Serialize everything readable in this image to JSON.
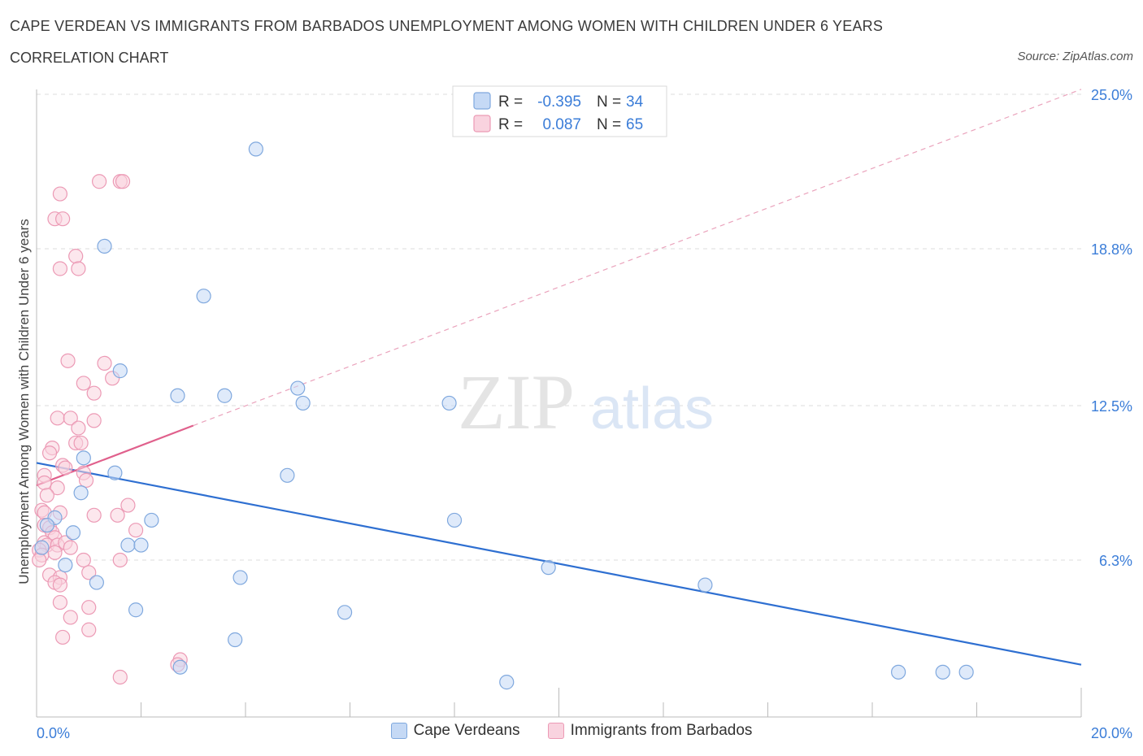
{
  "header": {
    "title": "CAPE VERDEAN VS IMMIGRANTS FROM BARBADOS UNEMPLOYMENT AMONG WOMEN WITH CHILDREN UNDER 6 YEARS",
    "subtitle": "CORRELATION CHART",
    "source": "Source: ZipAtlas.com"
  },
  "watermark": {
    "zip": "ZIP",
    "atlas": "atlas"
  },
  "legend_box": {
    "rows": [
      {
        "r_label": "R =",
        "r_value": "-0.395",
        "n_label": "N =",
        "n_value": "34"
      },
      {
        "r_label": "R =",
        "r_value": "0.087",
        "n_label": "N =",
        "n_value": "65"
      }
    ]
  },
  "chart_data": {
    "type": "scatter",
    "title": "CAPE VERDEAN VS IMMIGRANTS FROM BARBADOS UNEMPLOYMENT AMONG WOMEN WITH CHILDREN UNDER 6 YEARS",
    "xlabel": "",
    "ylabel": "Unemployment Among Women with Children Under 6 years",
    "xlim": [
      0,
      20
    ],
    "ylim": [
      0,
      25
    ],
    "x_tick_labels": [
      {
        "value": 0,
        "label": "0.0%"
      },
      {
        "value": 20,
        "label": "20.0%"
      }
    ],
    "y_tick_labels": [
      {
        "value": 6.3,
        "label": "6.3%"
      },
      {
        "value": 12.5,
        "label": "12.5%"
      },
      {
        "value": 18.8,
        "label": "18.8%"
      },
      {
        "value": 25.0,
        "label": "25.0%"
      }
    ],
    "legend_position": "bottom-center",
    "colors": {
      "blue_stroke": "#7fa8de",
      "blue_fill": "#c5d9f5",
      "blue_line": "#2e6fd1",
      "pink_stroke": "#ec9ab5",
      "pink_fill": "#f9d3df",
      "pink_line": "#e0608c",
      "value_text": "#3b7dd8"
    },
    "series": [
      {
        "name": "Cape Verdeans",
        "color": "#7fa8de",
        "trend": {
          "x": [
            0,
            20
          ],
          "y": [
            10.2,
            2.1
          ],
          "style": "solid"
        },
        "points": [
          [
            4.2,
            22.8
          ],
          [
            1.3,
            18.9
          ],
          [
            3.2,
            16.9
          ],
          [
            1.6,
            13.9
          ],
          [
            5.0,
            13.2
          ],
          [
            2.7,
            12.9
          ],
          [
            3.6,
            12.9
          ],
          [
            5.1,
            12.6
          ],
          [
            7.9,
            12.6
          ],
          [
            0.9,
            10.4
          ],
          [
            1.5,
            9.8
          ],
          [
            4.8,
            9.7
          ],
          [
            0.85,
            9.0
          ],
          [
            0.35,
            8.0
          ],
          [
            2.2,
            7.9
          ],
          [
            8.0,
            7.9
          ],
          [
            0.7,
            7.4
          ],
          [
            1.75,
            6.9
          ],
          [
            2.0,
            6.9
          ],
          [
            0.55,
            6.1
          ],
          [
            9.8,
            6.0
          ],
          [
            3.9,
            5.6
          ],
          [
            1.15,
            5.4
          ],
          [
            12.8,
            5.3
          ],
          [
            1.9,
            4.3
          ],
          [
            5.9,
            4.2
          ],
          [
            3.8,
            3.1
          ],
          [
            2.75,
            2.0
          ],
          [
            16.5,
            1.8
          ],
          [
            17.35,
            1.8
          ],
          [
            17.8,
            1.8
          ],
          [
            9.0,
            1.4
          ],
          [
            0.2,
            7.7
          ],
          [
            0.1,
            6.8
          ]
        ]
      },
      {
        "name": "Immigrants from Barbados",
        "color": "#ec9ab5",
        "trend": {
          "x": [
            0,
            3.0
          ],
          "y": [
            9.3,
            11.7
          ],
          "style": "solid"
        },
        "trend_ext": {
          "x": [
            3.0,
            20
          ],
          "y": [
            11.7,
            25.2
          ],
          "style": "dashed"
        },
        "points": [
          [
            1.2,
            21.5
          ],
          [
            1.6,
            21.5
          ],
          [
            1.65,
            21.5
          ],
          [
            0.45,
            21.0
          ],
          [
            0.35,
            20.0
          ],
          [
            0.5,
            20.0
          ],
          [
            0.75,
            18.5
          ],
          [
            0.45,
            18.0
          ],
          [
            0.8,
            18.0
          ],
          [
            0.6,
            14.3
          ],
          [
            1.3,
            14.2
          ],
          [
            1.45,
            13.6
          ],
          [
            0.9,
            13.4
          ],
          [
            1.1,
            13.0
          ],
          [
            0.4,
            12.0
          ],
          [
            0.65,
            12.0
          ],
          [
            1.1,
            11.9
          ],
          [
            0.8,
            11.6
          ],
          [
            0.75,
            11.0
          ],
          [
            0.85,
            11.0
          ],
          [
            0.3,
            10.8
          ],
          [
            0.25,
            10.6
          ],
          [
            0.5,
            10.1
          ],
          [
            0.55,
            10.0
          ],
          [
            0.15,
            9.7
          ],
          [
            0.9,
            9.8
          ],
          [
            0.95,
            9.5
          ],
          [
            0.15,
            9.4
          ],
          [
            0.4,
            9.2
          ],
          [
            0.2,
            8.9
          ],
          [
            1.75,
            8.5
          ],
          [
            0.1,
            8.3
          ],
          [
            0.15,
            8.2
          ],
          [
            0.45,
            8.2
          ],
          [
            1.1,
            8.1
          ],
          [
            1.55,
            8.1
          ],
          [
            0.15,
            7.7
          ],
          [
            0.25,
            7.6
          ],
          [
            0.3,
            7.4
          ],
          [
            1.9,
            7.5
          ],
          [
            0.35,
            7.2
          ],
          [
            0.15,
            7.0
          ],
          [
            0.2,
            6.9
          ],
          [
            0.4,
            6.9
          ],
          [
            0.05,
            6.7
          ],
          [
            0.35,
            6.6
          ],
          [
            0.1,
            6.5
          ],
          [
            0.05,
            6.3
          ],
          [
            0.9,
            6.3
          ],
          [
            1.6,
            6.3
          ],
          [
            1.0,
            5.8
          ],
          [
            0.25,
            5.7
          ],
          [
            0.45,
            5.6
          ],
          [
            0.35,
            5.4
          ],
          [
            0.45,
            5.3
          ],
          [
            0.45,
            4.6
          ],
          [
            1.0,
            4.4
          ],
          [
            0.65,
            4.0
          ],
          [
            1.0,
            3.5
          ],
          [
            0.5,
            3.2
          ],
          [
            2.75,
            2.3
          ],
          [
            2.7,
            2.1
          ],
          [
            1.6,
            1.6
          ],
          [
            0.55,
            7.0
          ],
          [
            0.65,
            6.8
          ]
        ]
      }
    ]
  },
  "bottom_legend": {
    "items": [
      {
        "label": "Cape Verdeans"
      },
      {
        "label": "Immigrants from Barbados"
      }
    ]
  }
}
